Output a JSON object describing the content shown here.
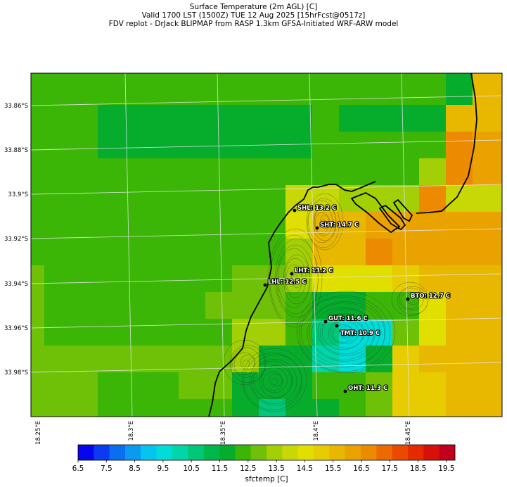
{
  "title": {
    "line1": "Surface Temperature (2m AGL) [C]",
    "line2": "Valid 1700 LST (1500Z) TUE 12 Aug 2025 [15hrFcst@0517z]",
    "line3": "FDV replot - DrJack BLIPMAP from RASP 1.3km GFSA-Initiated WRF-ARW model"
  },
  "lat_labels": [
    "33.86°S",
    "33.88°S",
    "33.9°S",
    "33.92°S",
    "33.94°S",
    "33.96°S",
    "33.98°S"
  ],
  "lon_labels": [
    "18.25°E",
    "18.3°E",
    "18.35°E",
    "18.4°E",
    "18.45°E"
  ],
  "stations": [
    {
      "label": "SHL: 13.2 C"
    },
    {
      "label": "SHT: 14.7 C"
    },
    {
      "label": "LHT: 13.2 C"
    },
    {
      "label": "LHL: 12.5 C"
    },
    {
      "label": "BTO: 12.7 C"
    },
    {
      "label": "GUT: 11.6 C"
    },
    {
      "label": "TMT: 10.9 C"
    },
    {
      "label": "OHT: 11.3 C"
    }
  ],
  "colorbar": {
    "ticks": [
      "6.5",
      "7.5",
      "8.5",
      "9.5",
      "10.5",
      "11.5",
      "12.5",
      "13.5",
      "14.5",
      "15.5",
      "16.5",
      "17.5",
      "18.5",
      "19.5"
    ],
    "label": "sfctemp [C]",
    "colors": [
      "#0505ee",
      "#0a3bf0",
      "#0a6ef0",
      "#0a9af0",
      "#05c5f0",
      "#00dcd8",
      "#00d6a8",
      "#00c878",
      "#00b84a",
      "#06ad2c",
      "#3bb606",
      "#6ec106",
      "#a2cf06",
      "#c8d806",
      "#e0df00",
      "#e6cc00",
      "#e8b700",
      "#eaa200",
      "#ec8a00",
      "#ec6a00",
      "#ea4a00",
      "#e62a00",
      "#d8100a",
      "#c2001e"
    ]
  },
  "chart_data": {
    "type": "heatmap",
    "title": "Surface Temperature (2m AGL) [C]",
    "variable": "sfctemp [C]",
    "lat_range_S": [
      33.845,
      34.0
    ],
    "lon_range_E": [
      18.25,
      18.51
    ],
    "color_scale_min": 6.5,
    "color_scale_max": 19.5,
    "stations": [
      {
        "id": "SHL",
        "value": 13.2
      },
      {
        "id": "SHT",
        "value": 14.7
      },
      {
        "id": "LHT",
        "value": 13.2
      },
      {
        "id": "LHL",
        "value": 12.5
      },
      {
        "id": "BTO",
        "value": 12.7
      },
      {
        "id": "GUT",
        "value": 11.6
      },
      {
        "id": "TMT",
        "value": 10.9
      },
      {
        "id": "OHT",
        "value": 11.3
      }
    ]
  }
}
